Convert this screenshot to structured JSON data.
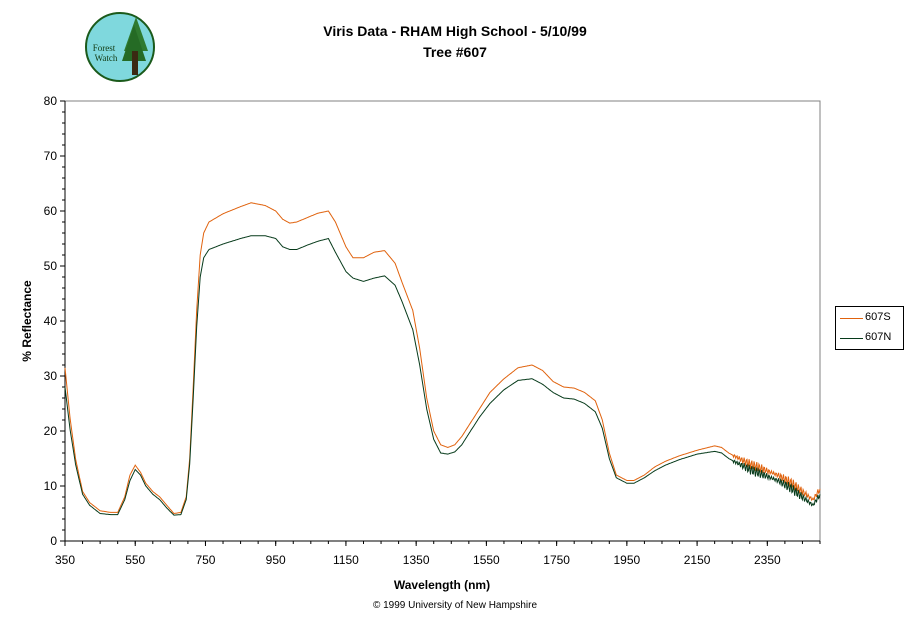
{
  "colors": {
    "background": "#ffffff",
    "axis": "#000000",
    "s607": "#e0620d",
    "n607": "#063a1a"
  },
  "logo": {
    "text_line1": "Forest",
    "text_line2": "Watch",
    "icon": "tree-icon"
  },
  "copyright": "© 1999 University of New Hampshire",
  "chart_data": {
    "type": "line",
    "title": "Viris Data - RHAM High School - 5/10/99",
    "subtitle": "Tree #607",
    "xlabel": "Wavelength (nm)",
    "ylabel": "% Reflectance",
    "xlim": [
      350,
      2500
    ],
    "ylim": [
      0,
      80
    ],
    "x_ticks": [
      350,
      550,
      750,
      950,
      1150,
      1350,
      1550,
      1750,
      1950,
      2150,
      2350
    ],
    "y_ticks": [
      0,
      10,
      20,
      30,
      40,
      50,
      60,
      70,
      80
    ],
    "grid": false,
    "legend": "right",
    "series": [
      {
        "name": "607S",
        "color": "#e0620d",
        "points": [
          [
            350,
            31.5
          ],
          [
            365,
            22
          ],
          [
            380,
            15
          ],
          [
            400,
            9
          ],
          [
            420,
            7
          ],
          [
            450,
            5.5
          ],
          [
            480,
            5.2
          ],
          [
            500,
            5.2
          ],
          [
            520,
            8
          ],
          [
            535,
            12
          ],
          [
            550,
            13.8
          ],
          [
            565,
            12.5
          ],
          [
            580,
            10.5
          ],
          [
            600,
            9
          ],
          [
            620,
            8
          ],
          [
            640,
            6.5
          ],
          [
            660,
            5
          ],
          [
            680,
            5.2
          ],
          [
            695,
            8
          ],
          [
            705,
            15
          ],
          [
            715,
            28
          ],
          [
            725,
            42
          ],
          [
            735,
            52
          ],
          [
            745,
            56
          ],
          [
            760,
            58
          ],
          [
            800,
            59.5
          ],
          [
            850,
            60.8
          ],
          [
            880,
            61.5
          ],
          [
            920,
            61
          ],
          [
            950,
            60
          ],
          [
            970,
            58.5
          ],
          [
            990,
            57.8
          ],
          [
            1010,
            58
          ],
          [
            1040,
            58.8
          ],
          [
            1070,
            59.6
          ],
          [
            1100,
            60
          ],
          [
            1120,
            58
          ],
          [
            1150,
            53.5
          ],
          [
            1170,
            51.5
          ],
          [
            1200,
            51.5
          ],
          [
            1230,
            52.5
          ],
          [
            1260,
            52.8
          ],
          [
            1290,
            50.5
          ],
          [
            1310,
            47
          ],
          [
            1340,
            42
          ],
          [
            1360,
            35
          ],
          [
            1380,
            26
          ],
          [
            1400,
            20
          ],
          [
            1420,
            17.5
          ],
          [
            1440,
            17
          ],
          [
            1460,
            17.5
          ],
          [
            1480,
            19
          ],
          [
            1500,
            21
          ],
          [
            1530,
            24
          ],
          [
            1560,
            27
          ],
          [
            1600,
            29.5
          ],
          [
            1640,
            31.5
          ],
          [
            1680,
            32
          ],
          [
            1710,
            31
          ],
          [
            1740,
            29
          ],
          [
            1770,
            28
          ],
          [
            1800,
            27.8
          ],
          [
            1830,
            27
          ],
          [
            1860,
            25.5
          ],
          [
            1880,
            22
          ],
          [
            1900,
            16
          ],
          [
            1920,
            12
          ],
          [
            1950,
            11
          ],
          [
            1970,
            11
          ],
          [
            2000,
            12
          ],
          [
            2030,
            13.5
          ],
          [
            2060,
            14.5
          ],
          [
            2100,
            15.5
          ],
          [
            2150,
            16.5
          ],
          [
            2200,
            17.3
          ],
          [
            2220,
            17
          ],
          [
            2240,
            16
          ],
          [
            2270,
            15
          ],
          [
            2300,
            14
          ],
          [
            2340,
            13
          ],
          [
            2380,
            12
          ],
          [
            2420,
            10.5
          ],
          [
            2450,
            9
          ],
          [
            2480,
            7.5
          ],
          [
            2500,
            9.5
          ]
        ]
      },
      {
        "name": "607N",
        "color": "#063a1a",
        "points": [
          [
            350,
            28
          ],
          [
            365,
            20
          ],
          [
            380,
            14
          ],
          [
            400,
            8.5
          ],
          [
            420,
            6.5
          ],
          [
            450,
            5
          ],
          [
            480,
            4.8
          ],
          [
            500,
            4.8
          ],
          [
            520,
            7.5
          ],
          [
            535,
            11
          ],
          [
            550,
            13
          ],
          [
            565,
            12
          ],
          [
            580,
            10
          ],
          [
            600,
            8.5
          ],
          [
            620,
            7.5
          ],
          [
            640,
            6
          ],
          [
            660,
            4.7
          ],
          [
            680,
            4.8
          ],
          [
            695,
            7.5
          ],
          [
            705,
            14
          ],
          [
            715,
            26
          ],
          [
            725,
            39
          ],
          [
            735,
            48
          ],
          [
            745,
            51.5
          ],
          [
            760,
            53
          ],
          [
            800,
            54
          ],
          [
            850,
            55
          ],
          [
            880,
            55.5
          ],
          [
            920,
            55.5
          ],
          [
            950,
            55
          ],
          [
            970,
            53.5
          ],
          [
            990,
            53
          ],
          [
            1010,
            53
          ],
          [
            1040,
            53.8
          ],
          [
            1070,
            54.5
          ],
          [
            1100,
            55
          ],
          [
            1120,
            52.5
          ],
          [
            1150,
            49
          ],
          [
            1170,
            47.8
          ],
          [
            1200,
            47.2
          ],
          [
            1230,
            47.8
          ],
          [
            1260,
            48.2
          ],
          [
            1290,
            46.5
          ],
          [
            1310,
            43.5
          ],
          [
            1340,
            38.5
          ],
          [
            1360,
            32
          ],
          [
            1380,
            24
          ],
          [
            1400,
            18.5
          ],
          [
            1420,
            16
          ],
          [
            1440,
            15.8
          ],
          [
            1460,
            16.2
          ],
          [
            1480,
            17.5
          ],
          [
            1500,
            19.5
          ],
          [
            1530,
            22.5
          ],
          [
            1560,
            25
          ],
          [
            1600,
            27.5
          ],
          [
            1640,
            29.2
          ],
          [
            1680,
            29.5
          ],
          [
            1710,
            28.5
          ],
          [
            1740,
            27
          ],
          [
            1770,
            26
          ],
          [
            1800,
            25.8
          ],
          [
            1830,
            25
          ],
          [
            1860,
            23.5
          ],
          [
            1880,
            20.5
          ],
          [
            1900,
            15
          ],
          [
            1920,
            11.5
          ],
          [
            1950,
            10.5
          ],
          [
            1970,
            10.5
          ],
          [
            2000,
            11.5
          ],
          [
            2030,
            12.8
          ],
          [
            2060,
            13.8
          ],
          [
            2100,
            14.8
          ],
          [
            2150,
            15.8
          ],
          [
            2200,
            16.3
          ],
          [
            2220,
            16
          ],
          [
            2240,
            15
          ],
          [
            2270,
            14
          ],
          [
            2300,
            13
          ],
          [
            2340,
            12
          ],
          [
            2380,
            11
          ],
          [
            2420,
            9.5
          ],
          [
            2450,
            8
          ],
          [
            2480,
            6.5
          ],
          [
            2500,
            8.5
          ]
        ]
      }
    ]
  }
}
